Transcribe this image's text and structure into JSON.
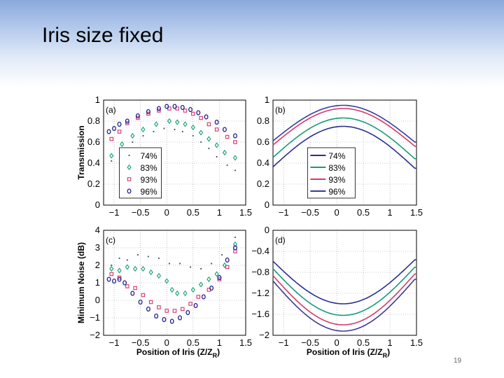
{
  "slide": {
    "title": "Iris size fixed",
    "page_number": "19"
  },
  "colors": {
    "74%": "#555555",
    "83%": "#1a9e77",
    "93%": "#d6336c",
    "96%": "#1c1c8c",
    "line74": "#2b2f8f",
    "line83": "#1a9a7a",
    "line93": "#d23b68",
    "line96": "#3a3a9a"
  },
  "chart_data": [
    {
      "id": "a",
      "panel_label": "(a)",
      "type": "scatter",
      "xlim": [
        -1.2,
        1.5
      ],
      "ylim": [
        0,
        1
      ],
      "xticks": [
        -1,
        -0.5,
        0,
        0.5,
        1,
        1.5
      ],
      "xtick_labels": [
        "−1",
        "−0.5",
        "0",
        "0.5",
        "1",
        "1.5"
      ],
      "yticks": [
        0,
        0.2,
        0.4,
        0.6,
        0.8,
        1
      ],
      "ytick_labels": [
        "0",
        "0.2",
        "0.4",
        "0.6",
        "0.8",
        "1"
      ],
      "ylabel": "Transmission",
      "xlabel": "",
      "legend": [
        "74%",
        "83%",
        "93%",
        "96%"
      ],
      "series": [
        {
          "name": "74%",
          "marker": "dot",
          "x": [
            -1.05,
            -0.85,
            -0.65,
            -0.45,
            -0.25,
            -0.05,
            0.15,
            0.3,
            0.5,
            0.65,
            0.8,
            0.95,
            1.15,
            1.3
          ],
          "y": [
            0.42,
            0.52,
            0.6,
            0.66,
            0.7,
            0.73,
            0.72,
            0.7,
            0.66,
            0.6,
            0.54,
            0.46,
            0.38,
            0.33
          ]
        },
        {
          "name": "83%",
          "marker": "diamond",
          "x": [
            -1.05,
            -0.85,
            -0.65,
            -0.45,
            -0.2,
            0.05,
            0.2,
            0.35,
            0.5,
            0.65,
            0.8,
            0.95,
            1.1,
            1.3
          ],
          "y": [
            0.47,
            0.58,
            0.66,
            0.72,
            0.77,
            0.8,
            0.79,
            0.77,
            0.74,
            0.69,
            0.63,
            0.57,
            0.5,
            0.45
          ]
        },
        {
          "name": "93%",
          "marker": "square",
          "x": [
            -1.05,
            -0.9,
            -0.75,
            -0.55,
            -0.35,
            -0.15,
            0.05,
            0.2,
            0.35,
            0.5,
            0.65,
            0.8,
            0.95,
            1.15,
            1.3
          ],
          "y": [
            0.63,
            0.7,
            0.78,
            0.83,
            0.87,
            0.9,
            0.92,
            0.92,
            0.9,
            0.87,
            0.83,
            0.77,
            0.72,
            0.65,
            0.6
          ]
        },
        {
          "name": "96%",
          "marker": "circle",
          "x": [
            -1.1,
            -1.0,
            -0.9,
            -0.75,
            -0.55,
            -0.35,
            -0.15,
            0.0,
            0.15,
            0.3,
            0.45,
            0.6,
            0.75,
            0.95,
            1.1,
            1.3
          ],
          "y": [
            0.7,
            0.73,
            0.77,
            0.8,
            0.85,
            0.89,
            0.92,
            0.94,
            0.94,
            0.93,
            0.91,
            0.88,
            0.84,
            0.79,
            0.72,
            0.66
          ]
        }
      ]
    },
    {
      "id": "b",
      "panel_label": "(b)",
      "type": "line",
      "xlim": [
        -1.2,
        1.5
      ],
      "ylim": [
        0,
        1
      ],
      "xticks": [
        -1,
        -0.5,
        0,
        0.5,
        1,
        1.5
      ],
      "xtick_labels": [
        "−1",
        "−0.5",
        "0",
        "0.5",
        "1",
        "1.5"
      ],
      "yticks": [
        0,
        0.2,
        0.4,
        0.6,
        0.8,
        1
      ],
      "ytick_labels": [
        "0",
        "0.2",
        "0.4",
        "0.6",
        "0.8",
        "1"
      ],
      "ylabel": "",
      "xlabel": "",
      "legend": [
        "74%",
        "83%",
        "93%",
        "96%"
      ],
      "series": [
        {
          "name": "74%",
          "peak_x": 0.12,
          "peak": 0.75,
          "edge": 0.35
        },
        {
          "name": "83%",
          "peak_x": 0.12,
          "peak": 0.83,
          "edge": 0.44
        },
        {
          "name": "93%",
          "peak_x": 0.12,
          "peak": 0.92,
          "edge": 0.56
        },
        {
          "name": "96%",
          "peak_x": 0.12,
          "peak": 0.95,
          "edge": 0.6
        }
      ]
    },
    {
      "id": "c",
      "panel_label": "(c)",
      "type": "scatter",
      "xlim": [
        -1.2,
        1.5
      ],
      "ylim": [
        -2,
        4
      ],
      "xticks": [
        -1,
        -0.5,
        0,
        0.5,
        1,
        1.5
      ],
      "xtick_labels": [
        "−1",
        "−0.5",
        "0",
        "0.5",
        "1",
        "1.5"
      ],
      "yticks": [
        -2,
        -1,
        0,
        1,
        2,
        3,
        4
      ],
      "ytick_labels": [
        "−2",
        "−1",
        "0",
        "1",
        "2",
        "3",
        "4"
      ],
      "ylabel": "Minimum Noise (dB)",
      "xlabel": "Position of Iris (Z/Z",
      "xlabel_sub": "R",
      "xlabel_end": ")",
      "series": [
        {
          "name": "74%",
          "marker": "dot",
          "x": [
            -1.05,
            -0.9,
            -0.75,
            -0.55,
            -0.35,
            -0.15,
            0.05,
            0.25,
            0.45,
            0.65,
            0.85,
            1.05,
            1.3
          ],
          "y": [
            2.0,
            2.4,
            2.3,
            2.6,
            2.5,
            2.4,
            2.1,
            2.1,
            1.9,
            1.8,
            2.1,
            2.6,
            3.6
          ]
        },
        {
          "name": "83%",
          "marker": "diamond",
          "x": [
            -1.05,
            -0.9,
            -0.75,
            -0.6,
            -0.45,
            -0.3,
            -0.15,
            0.0,
            0.1,
            0.2,
            0.35,
            0.5,
            0.65,
            0.8,
            0.95,
            1.1,
            1.3
          ],
          "y": [
            1.8,
            1.7,
            1.9,
            1.8,
            1.8,
            1.6,
            1.4,
            1.1,
            0.6,
            0.4,
            0.4,
            0.6,
            0.9,
            1.2,
            1.5,
            2.0,
            3.2
          ]
        },
        {
          "name": "93%",
          "marker": "square",
          "x": [
            -1.05,
            -0.9,
            -0.75,
            -0.6,
            -0.45,
            -0.3,
            -0.15,
            0.0,
            0.15,
            0.3,
            0.45,
            0.6,
            0.8,
            1.0,
            1.15,
            1.3
          ],
          "y": [
            1.5,
            1.3,
            0.8,
            0.7,
            0.3,
            -0.1,
            -0.4,
            -0.6,
            -0.6,
            -0.5,
            -0.2,
            0.2,
            0.6,
            1.2,
            1.9,
            2.8
          ]
        },
        {
          "name": "96%",
          "marker": "circle",
          "x": [
            -1.1,
            -1.0,
            -0.9,
            -0.8,
            -0.65,
            -0.5,
            -0.35,
            -0.2,
            -0.05,
            0.1,
            0.25,
            0.4,
            0.55,
            0.7,
            0.85,
            1.0,
            1.15,
            1.3
          ],
          "y": [
            1.2,
            1.1,
            1.2,
            1.0,
            0.4,
            -0.1,
            -0.5,
            -0.9,
            -1.1,
            -1.2,
            -1.0,
            -0.7,
            -0.3,
            0.2,
            0.7,
            1.3,
            2.3,
            3.0
          ]
        }
      ]
    },
    {
      "id": "d",
      "panel_label": "(d)",
      "type": "line",
      "xlim": [
        -1.2,
        1.5
      ],
      "ylim": [
        -2,
        0
      ],
      "xticks": [
        -1,
        -0.5,
        0,
        0.5,
        1,
        1.5
      ],
      "xtick_labels": [
        "−1",
        "−0.5",
        "0",
        "0.5",
        "1",
        "1.5"
      ],
      "yticks": [
        -2,
        -1.6,
        -1.2,
        -0.8,
        -0.4,
        0
      ],
      "ytick_labels": [
        "−2",
        "−1.6",
        "−1.2",
        "−0.8",
        "−0.4",
        "0"
      ],
      "ylabel": "",
      "xlabel": "Position of Iris (Z/Z",
      "xlabel_sub": "R",
      "xlabel_end": ")",
      "series": [
        {
          "name": "74%",
          "trough_x": 0.12,
          "trough": -1.4,
          "edge": -0.56
        },
        {
          "name": "83%",
          "trough_x": 0.12,
          "trough": -1.62,
          "edge": -0.7
        },
        {
          "name": "93%",
          "trough_x": 0.12,
          "trough": -1.8,
          "edge": -0.83
        },
        {
          "name": "96%",
          "trough_x": 0.12,
          "trough": -1.92,
          "edge": -0.93
        }
      ]
    }
  ]
}
